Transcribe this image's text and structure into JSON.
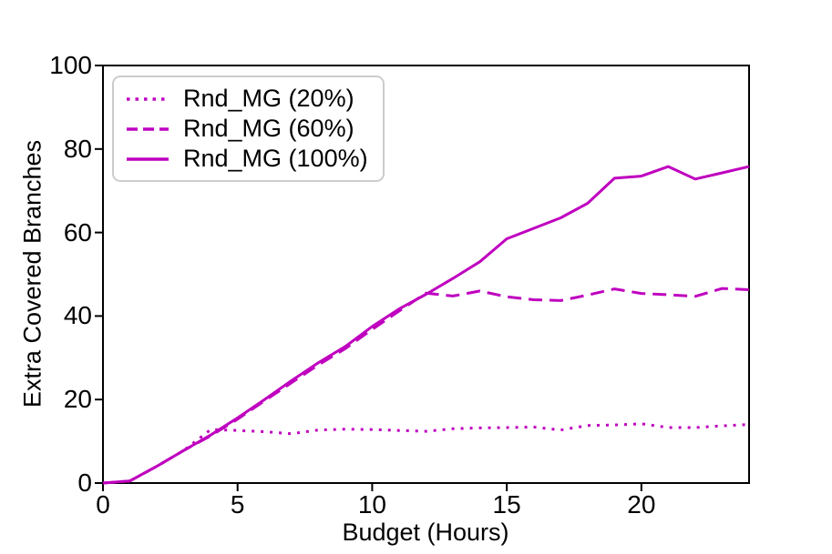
{
  "figure": {
    "background": "#ffffff",
    "axis_color": "#000000",
    "series_color": "#bf00bf",
    "legend_border_color": "#cccccc"
  },
  "chart_data": {
    "type": "line",
    "title": "",
    "xlabel": "Budget (Hours)",
    "ylabel": "Extra Covered Branches",
    "xlim": [
      0,
      24
    ],
    "ylim": [
      0,
      100
    ],
    "x_ticks": [
      0,
      5,
      10,
      15,
      20
    ],
    "y_ticks": [
      0,
      20,
      40,
      60,
      80,
      100
    ],
    "grid": false,
    "legend_position": "upper left",
    "x": [
      0,
      1,
      2,
      3,
      4,
      5,
      6,
      7,
      8,
      9,
      10,
      11,
      12,
      13,
      14,
      15,
      16,
      17,
      18,
      19,
      20,
      21,
      22,
      23,
      24
    ],
    "series": [
      {
        "label": "Rnd_MG (20%)",
        "style": "dotted",
        "color": "#bf00bf",
        "values": [
          0,
          0.5,
          4,
          7.8,
          12.8,
          12.6,
          12.3,
          11.8,
          12.7,
          12.9,
          12.8,
          12.6,
          12.4,
          13,
          13.2,
          13.3,
          13.4,
          12.7,
          13.8,
          13.9,
          14.2,
          13.3,
          13.3,
          13.7,
          14
        ]
      },
      {
        "label": "Rnd_MG (60%)",
        "style": "dashed",
        "color": "#bf00bf",
        "values": [
          0,
          0.5,
          4,
          7.8,
          11.3,
          15.3,
          19.7,
          24,
          28.3,
          32.2,
          36.8,
          41.2,
          45.5,
          44.8,
          46,
          44.6,
          43.9,
          43.7,
          45,
          46.5,
          45.4,
          45.1,
          44.7,
          46.6,
          46.3
        ]
      },
      {
        "label": "Rnd_MG (100%)",
        "style": "solid",
        "color": "#bf00bf",
        "values": [
          0,
          0.5,
          4,
          7.8,
          11.5,
          15.6,
          20,
          24.5,
          28.8,
          32.7,
          37.5,
          41.7,
          45.2,
          49,
          53,
          58.5,
          61,
          63.5,
          67,
          73,
          73.5,
          75.8,
          72.8,
          74.3,
          75.8
        ]
      }
    ]
  }
}
